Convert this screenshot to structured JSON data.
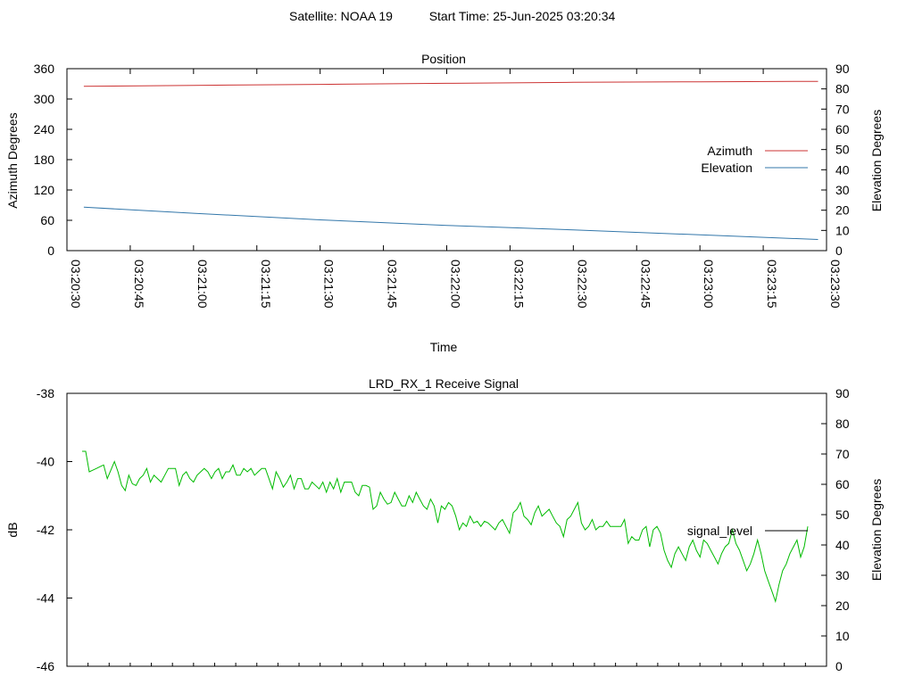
{
  "header": {
    "satellite_label": "Satellite: NOAA 19",
    "start_label": "Start Time: 25-Jun-2025 03:20:34"
  },
  "colors": {
    "azimuth": "#cc3333",
    "elevation": "#3377aa",
    "signal": "#00bb00",
    "legend_signal": "#000000"
  },
  "chart_data": [
    {
      "type": "line",
      "title": "Position",
      "xlabel": "Time",
      "ylabel": "Azimuth Degrees",
      "y2label": "Elevation Degrees",
      "ylim": [
        0,
        360
      ],
      "y2lim": [
        0,
        90
      ],
      "yticks": [
        "0",
        "60",
        "120",
        "180",
        "240",
        "300",
        "360"
      ],
      "y2ticks": [
        "0",
        "10",
        "20",
        "30",
        "40",
        "50",
        "60",
        "70",
        "80",
        "90"
      ],
      "xlim": [
        "03:20:30",
        "03:23:30"
      ],
      "xticks": [
        "03:20:30",
        "03:20:45",
        "03:21:00",
        "03:21:15",
        "03:21:30",
        "03:21:45",
        "03:22:00",
        "03:22:15",
        "03:22:30",
        "03:22:45",
        "03:23:00",
        "03:23:15",
        "03:23:30"
      ],
      "legend_position": "right",
      "grid": false,
      "series": [
        {
          "name": "Azimuth",
          "axis": "left",
          "x": [
            "03:20:34",
            "03:21:00",
            "03:21:30",
            "03:22:00",
            "03:22:30",
            "03:23:00",
            "03:23:28"
          ],
          "values": [
            325,
            327,
            329,
            331,
            333,
            334,
            335
          ]
        },
        {
          "name": "Elevation",
          "axis": "right",
          "x": [
            "03:20:34",
            "03:21:00",
            "03:21:30",
            "03:22:00",
            "03:22:30",
            "03:23:00",
            "03:23:28"
          ],
          "values": [
            21.5,
            18.5,
            15.2,
            12.5,
            10.3,
            7.8,
            5.5
          ]
        }
      ]
    },
    {
      "type": "line",
      "title": "LRD_RX_1 Receive Signal",
      "ylabel": "dB",
      "y2label": "Elevation Degrees",
      "ylim": [
        -46,
        -38
      ],
      "y2lim": [
        0,
        90
      ],
      "yticks": [
        "-46",
        "-44",
        "-42",
        "-40",
        "-38"
      ],
      "y2ticks": [
        "0",
        "10",
        "20",
        "30",
        "40",
        "50",
        "60",
        "70",
        "80",
        "90"
      ],
      "legend_position": "right",
      "grid": false,
      "series": [
        {
          "name": "signal_level",
          "values": [
            -39.7,
            -39.7,
            -40.3,
            -40.25,
            -40.2,
            -40.15,
            -40.1,
            -40.5,
            -40.25,
            -40.0,
            -40.3,
            -40.7,
            -40.85,
            -40.4,
            -40.65,
            -40.7,
            -40.5,
            -40.4,
            -40.2,
            -40.6,
            -40.4,
            -40.5,
            -40.6,
            -40.4,
            -40.2,
            -40.2,
            -40.2,
            -40.7,
            -40.4,
            -40.3,
            -40.5,
            -40.6,
            -40.4,
            -40.3,
            -40.2,
            -40.3,
            -40.5,
            -40.3,
            -40.2,
            -40.5,
            -40.3,
            -40.3,
            -40.1,
            -40.4,
            -40.4,
            -40.2,
            -40.3,
            -40.2,
            -40.4,
            -40.3,
            -40.2,
            -40.2,
            -40.5,
            -40.8,
            -40.3,
            -40.5,
            -40.75,
            -40.6,
            -40.4,
            -40.8,
            -40.5,
            -40.5,
            -40.8,
            -40.8,
            -40.6,
            -40.7,
            -40.8,
            -40.6,
            -40.9,
            -40.6,
            -40.8,
            -40.5,
            -40.9,
            -40.6,
            -40.6,
            -40.6,
            -40.9,
            -41.0,
            -40.7,
            -40.7,
            -40.75,
            -41.4,
            -41.3,
            -40.9,
            -41.1,
            -41.25,
            -41.2,
            -40.9,
            -41.1,
            -41.3,
            -41.3,
            -41.0,
            -41.2,
            -40.9,
            -41.1,
            -41.3,
            -41.4,
            -41.1,
            -41.3,
            -41.8,
            -41.3,
            -41.4,
            -41.2,
            -41.3,
            -41.6,
            -42.0,
            -41.8,
            -41.9,
            -41.6,
            -41.8,
            -41.75,
            -41.9,
            -41.75,
            -41.8,
            -41.9,
            -42.0,
            -41.8,
            -41.7,
            -41.9,
            -42.1,
            -41.5,
            -41.4,
            -41.2,
            -41.6,
            -41.7,
            -41.85,
            -41.5,
            -41.3,
            -41.6,
            -41.5,
            -41.4,
            -41.6,
            -41.8,
            -41.9,
            -42.2,
            -41.7,
            -41.6,
            -41.4,
            -41.2,
            -41.8,
            -42.0,
            -41.9,
            -41.7,
            -42.0,
            -41.9,
            -41.9,
            -41.75,
            -41.9,
            -41.9,
            -41.9,
            -41.9,
            -41.7,
            -42.4,
            -42.2,
            -42.3,
            -42.3,
            -42.0,
            -41.9,
            -42.5,
            -42.0,
            -41.9,
            -42.1,
            -42.6,
            -42.9,
            -43.1,
            -42.7,
            -42.5,
            -42.7,
            -42.9,
            -42.5,
            -42.3,
            -42.6,
            -42.8,
            -42.3,
            -42.4,
            -42.6,
            -42.8,
            -43.0,
            -42.7,
            -42.5,
            -42.4,
            -42.0,
            -42.4,
            -42.6,
            -42.9,
            -43.2,
            -43.0,
            -42.7,
            -42.3,
            -42.7,
            -43.2,
            -43.5,
            -43.8,
            -44.1,
            -43.6,
            -43.2,
            -43.0,
            -42.7,
            -42.5,
            -42.3,
            -42.8,
            -42.5,
            -41.9
          ]
        }
      ]
    }
  ]
}
